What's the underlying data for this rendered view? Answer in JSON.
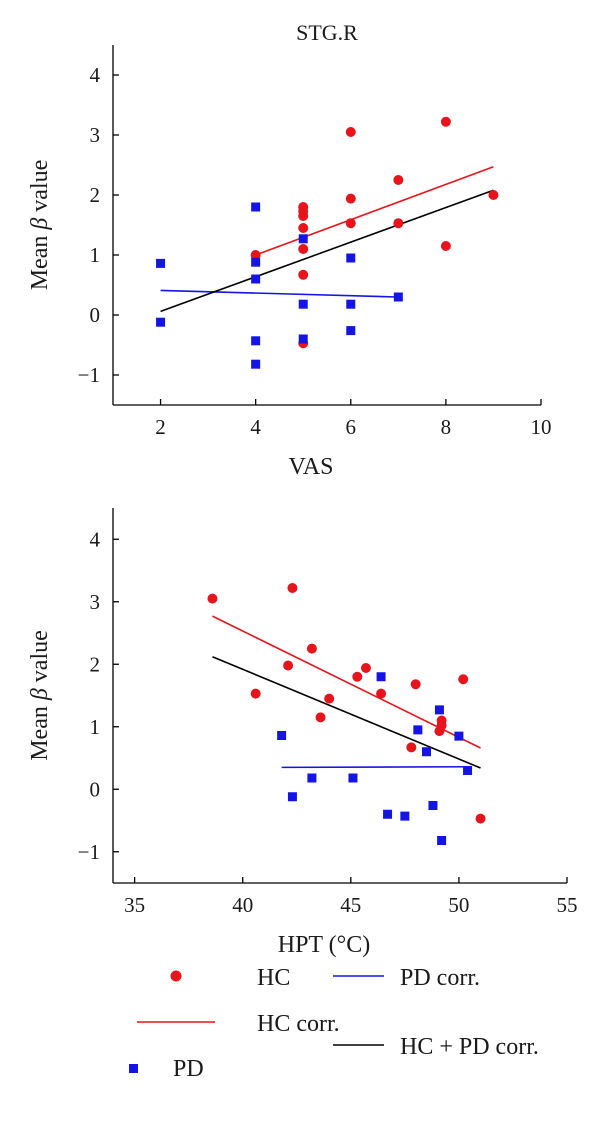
{
  "colors": {
    "hc": "#e8141c",
    "pd": "#1414e6",
    "combined": "#000000"
  },
  "legend": {
    "hc": "HC",
    "hc_corr": "HC corr.",
    "pd": "PD",
    "pd_corr": "PD corr.",
    "combined_corr": "HC + PD corr."
  },
  "chart_data": [
    {
      "type": "scatter",
      "title": "STG.R",
      "xlabel": "VAS",
      "ylabel": "Mean β value",
      "xlim": [
        1,
        10
      ],
      "ylim": [
        -1.5,
        4.5
      ],
      "xticks": [
        2,
        4,
        6,
        8,
        10
      ],
      "yticks": [
        -1,
        0,
        1,
        2,
        3,
        4
      ],
      "series": [
        {
          "name": "HC",
          "kind": "points",
          "marker": "circle",
          "color": "#e8141c",
          "x": [
            4,
            5,
            5,
            5,
            5,
            5,
            5,
            5,
            6,
            6,
            6,
            7,
            7,
            8,
            8,
            9
          ],
          "y": [
            1.0,
            1.8,
            1.73,
            1.65,
            1.45,
            1.1,
            0.67,
            -0.47,
            3.05,
            1.94,
            1.53,
            2.25,
            1.53,
            3.22,
            1.15,
            2.0
          ]
        },
        {
          "name": "PD",
          "kind": "points",
          "marker": "square",
          "color": "#1414e6",
          "x": [
            2,
            2,
            4,
            4,
            4,
            4,
            4,
            5,
            5,
            5,
            6,
            6,
            6,
            7
          ],
          "y": [
            0.86,
            -0.12,
            1.8,
            0.88,
            0.6,
            -0.43,
            -0.82,
            1.27,
            0.18,
            -0.4,
            0.95,
            0.18,
            -0.26,
            0.3
          ]
        },
        {
          "name": "HC corr.",
          "kind": "line",
          "color": "#e8141c",
          "x": [
            4,
            9
          ],
          "y": [
            1.0,
            2.47
          ]
        },
        {
          "name": "PD corr.",
          "kind": "line",
          "color": "#1414e6",
          "x": [
            2,
            7
          ],
          "y": [
            0.41,
            0.3
          ]
        },
        {
          "name": "HC + PD corr.",
          "kind": "line",
          "color": "#000000",
          "x": [
            2,
            9
          ],
          "y": [
            0.06,
            2.08
          ]
        }
      ]
    },
    {
      "type": "scatter",
      "title": "",
      "xlabel": "HPT (°C)",
      "ylabel": "Mean β value",
      "xlim": [
        34,
        55
      ],
      "ylim": [
        -1.5,
        4.5
      ],
      "xticks": [
        35,
        40,
        45,
        50,
        55
      ],
      "yticks": [
        -1,
        0,
        1,
        2,
        3,
        4
      ],
      "series": [
        {
          "name": "HC",
          "kind": "points",
          "marker": "circle",
          "color": "#e8141c",
          "x": [
            38.6,
            40.6,
            42.1,
            42.3,
            43.2,
            43.6,
            44.0,
            45.3,
            45.7,
            46.4,
            47.8,
            48.0,
            49.1,
            49.2,
            49.2,
            50.2,
            51.0
          ],
          "y": [
            3.05,
            1.53,
            1.98,
            3.22,
            2.25,
            1.15,
            1.45,
            1.8,
            1.94,
            1.53,
            0.67,
            1.68,
            0.93,
            1.02,
            1.1,
            1.76,
            -0.47
          ]
        },
        {
          "name": "PD",
          "kind": "points",
          "marker": "square",
          "color": "#1414e6",
          "x": [
            41.8,
            42.3,
            43.2,
            45.1,
            46.4,
            46.7,
            47.5,
            48.1,
            48.5,
            48.8,
            49.1,
            49.2,
            50.0,
            50.4
          ],
          "y": [
            0.86,
            -0.12,
            0.18,
            0.18,
            1.8,
            -0.4,
            -0.43,
            0.95,
            0.6,
            -0.26,
            1.27,
            -0.82,
            0.85,
            0.3
          ]
        },
        {
          "name": "HC corr.",
          "kind": "line",
          "color": "#e8141c",
          "x": [
            38.6,
            51.0
          ],
          "y": [
            2.77,
            0.66
          ]
        },
        {
          "name": "PD corr.",
          "kind": "line",
          "color": "#1414e6",
          "x": [
            41.8,
            50.4
          ],
          "y": [
            0.35,
            0.36
          ]
        },
        {
          "name": "HC + PD corr.",
          "kind": "line",
          "color": "#000000",
          "x": [
            38.6,
            51.0
          ],
          "y": [
            2.12,
            0.34
          ]
        }
      ]
    }
  ]
}
